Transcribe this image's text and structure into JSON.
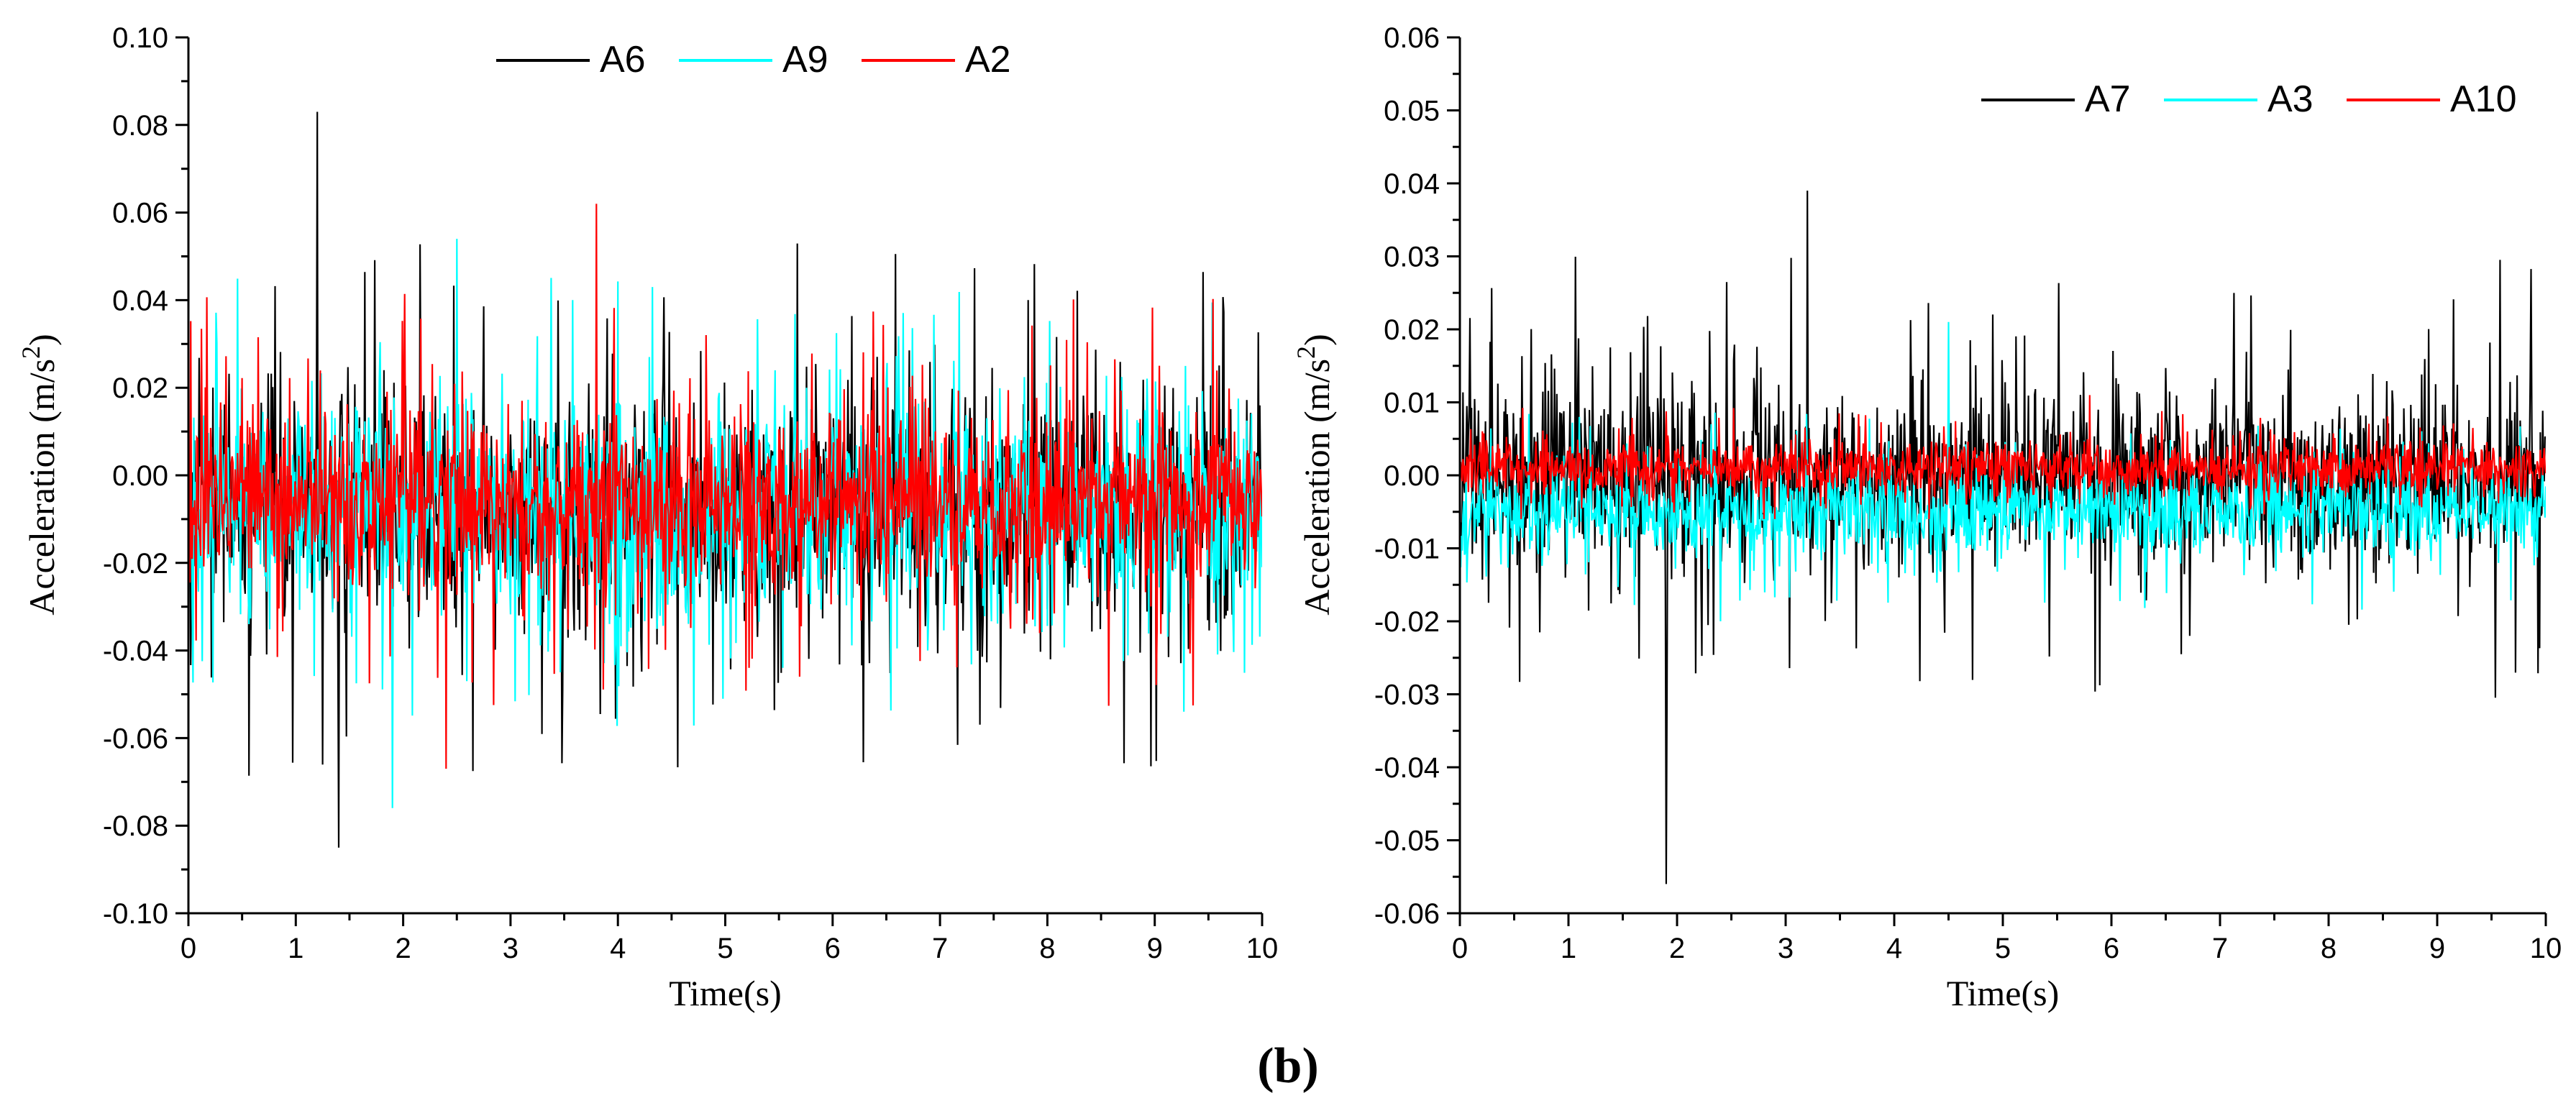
{
  "panel_label": "(b)",
  "chart_data": [
    {
      "type": "line",
      "xlabel": "Time(s)",
      "ylabel": "Acceleration",
      "ylabel_unit": "(m/s",
      "ylabel_sup": "2",
      "ylabel_close": ")",
      "xlim": [
        0,
        10
      ],
      "ylim": [
        -0.1,
        0.1
      ],
      "x_ticks": [
        "0",
        "1",
        "2",
        "3",
        "4",
        "5",
        "6",
        "7",
        "8",
        "9",
        "10"
      ],
      "y_ticks": [
        "-0.10",
        "-0.08",
        "-0.06",
        "-0.04",
        "-0.02",
        "0.00",
        "0.02",
        "0.04",
        "0.06",
        "0.08",
        "0.10"
      ],
      "legend_position": "top",
      "series": [
        {
          "name": "A6",
          "color": "#000000",
          "mean": -0.008,
          "noise_std": 0.018,
          "max_peak": 0.083,
          "min_peak": -0.085
        },
        {
          "name": "A9",
          "color": "#00ffff",
          "mean": -0.008,
          "noise_std": 0.016,
          "max_peak": 0.054,
          "min_peak": -0.076
        },
        {
          "name": "A2",
          "color": "#ff0000",
          "mean": -0.006,
          "noise_std": 0.014,
          "max_peak": 0.062,
          "min_peak": -0.067
        }
      ]
    },
    {
      "type": "line",
      "xlabel": "Time(s)",
      "ylabel": "Acceleration",
      "ylabel_unit": "(m/s",
      "ylabel_sup": "2",
      "ylabel_close": ")",
      "xlim": [
        0,
        10
      ],
      "ylim": [
        -0.06,
        0.06
      ],
      "x_ticks": [
        "0",
        "1",
        "2",
        "3",
        "4",
        "5",
        "6",
        "7",
        "8",
        "9",
        "10"
      ],
      "y_ticks": [
        "-0.06",
        "-0.05",
        "-0.04",
        "-0.03",
        "-0.02",
        "-0.01",
        "0.00",
        "0.01",
        "0.02",
        "0.03",
        "0.04",
        "0.05",
        "0.06"
      ],
      "legend_position": "top-right",
      "series": [
        {
          "name": "A7",
          "color": "#000000",
          "mean": 0.0,
          "noise_std": 0.009,
          "max_peak": 0.039,
          "min_peak": -0.056
        },
        {
          "name": "A3",
          "color": "#00ffff",
          "mean": -0.005,
          "noise_std": 0.004,
          "max_peak": 0.021,
          "min_peak": -0.02
        },
        {
          "name": "A10",
          "color": "#ff0000",
          "mean": 0.001,
          "noise_std": 0.0025,
          "max_peak": 0.011,
          "min_peak": -0.006
        }
      ]
    }
  ]
}
